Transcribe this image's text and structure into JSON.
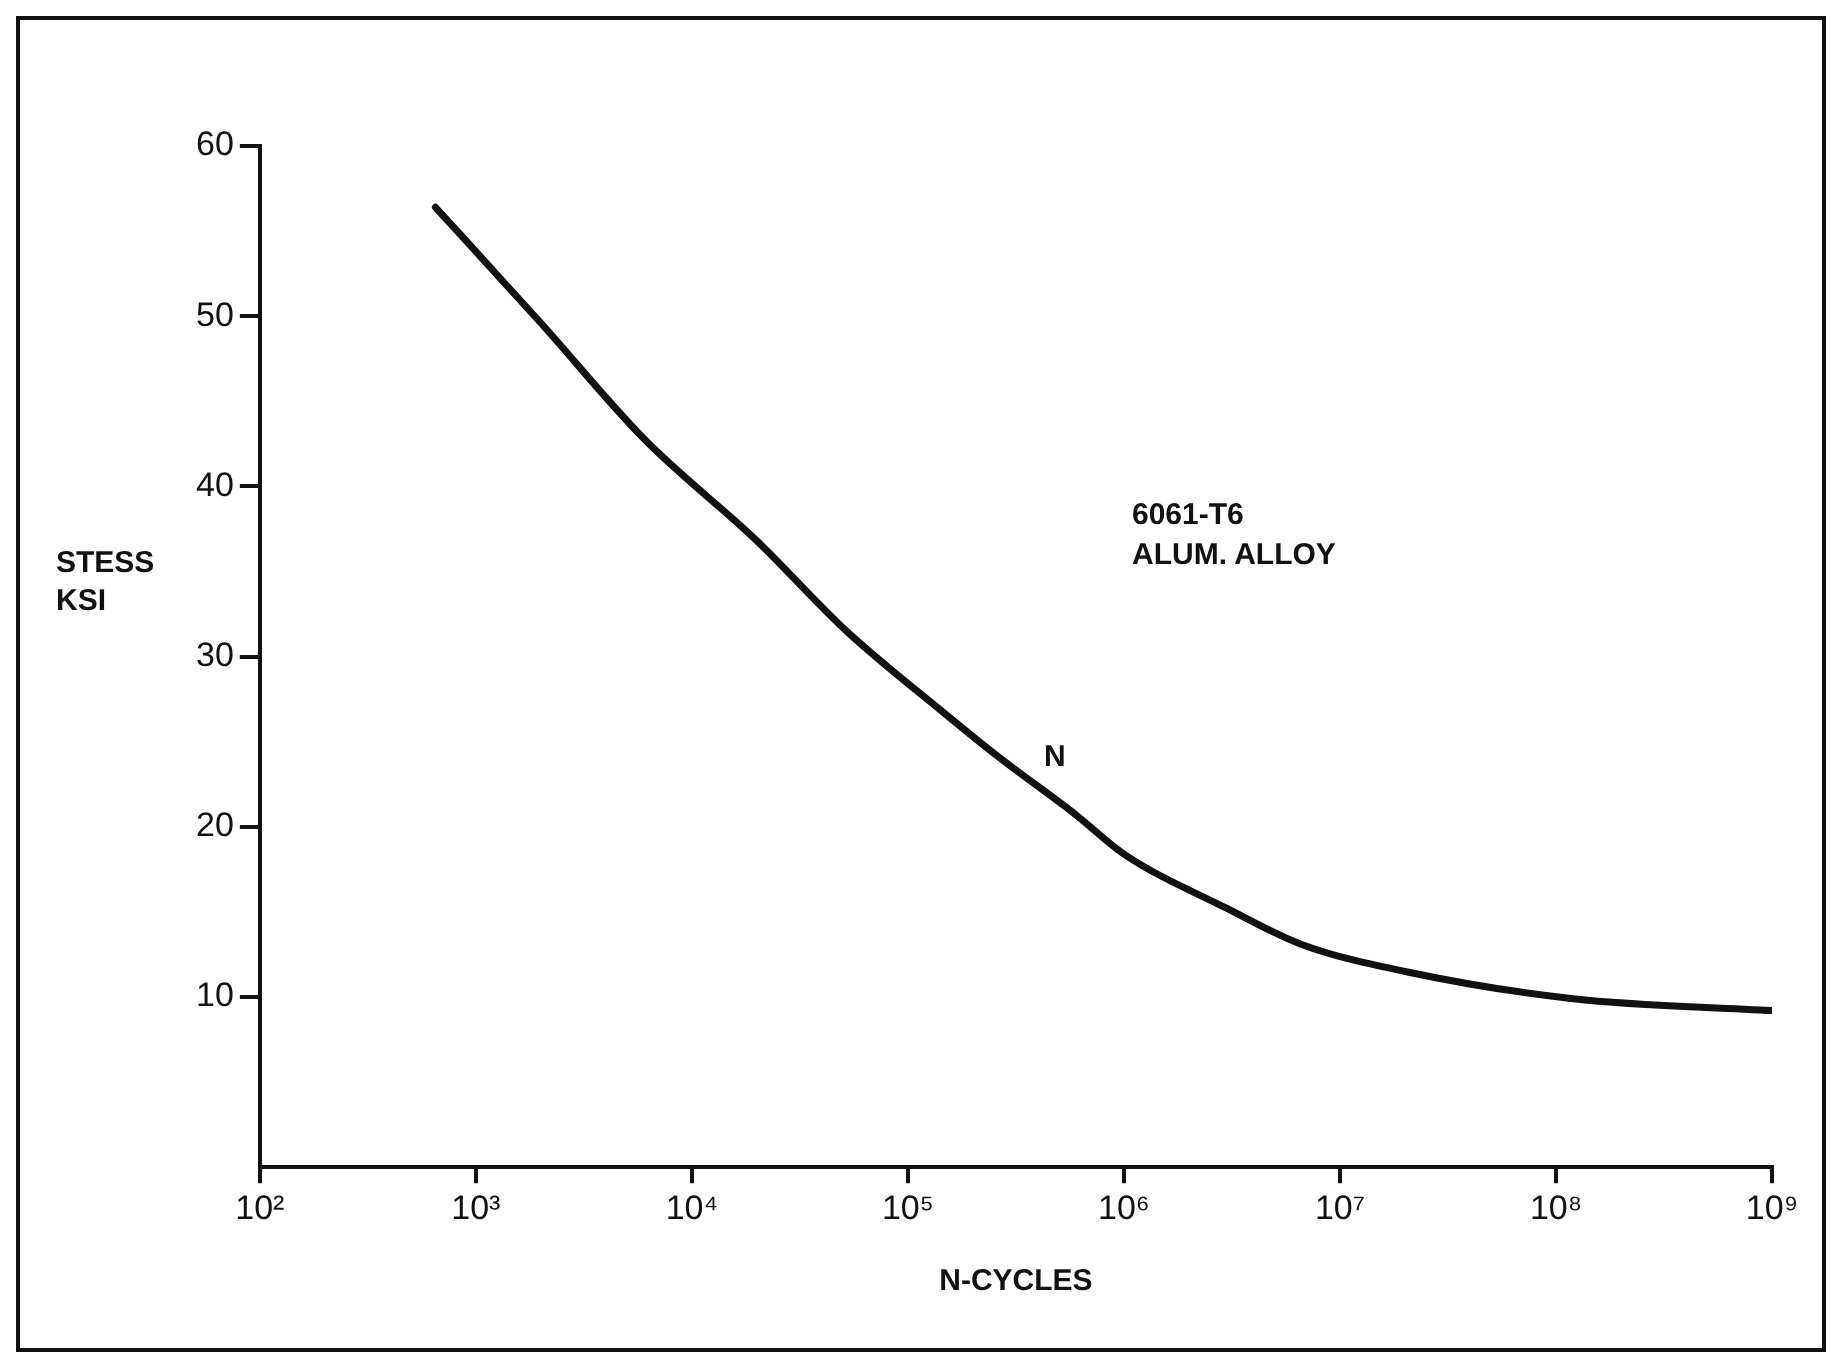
{
  "chart_data": {
    "type": "line",
    "xlabel": "N-CYCLES",
    "ylabel": "STESS KSI",
    "log": "x",
    "x": [
      650,
      2000,
      6000,
      20000,
      52000,
      150000,
      257000,
      600000,
      1000000,
      3000000,
      6600000,
      20000000,
      120000000,
      1000000000
    ],
    "series": [
      {
        "color": "#111111",
        "values": [
          56.4,
          49.6,
          42.8,
          36.8,
          31.5,
          26.6,
          24.2,
          20.7,
          18.4,
          15.2,
          13.1,
          11.5,
          9.9,
          9.2
        ]
      }
    ],
    "xlim": [
      100,
      1000000000
    ],
    "xticks": [
      {
        "value": 100,
        "label": "10²"
      },
      {
        "value": 1000,
        "label": "10³"
      },
      {
        "value": 10000,
        "label": "10⁴"
      },
      {
        "value": 100000,
        "label": "10⁵"
      },
      {
        "value": 1000000,
        "label": "10⁶"
      },
      {
        "value": 10000000,
        "label": "10⁷"
      },
      {
        "value": 100000000,
        "label": "10⁸"
      },
      {
        "value": 1000000000,
        "label": "10⁹"
      }
    ],
    "ylim": [
      0,
      60
    ],
    "yticks": [
      10,
      20,
      30,
      40,
      50,
      60
    ],
    "grid": false,
    "legend": false,
    "marker": "none",
    "line_style": "solid",
    "annotations": [
      "6061-T6",
      "ALUM. ALLOY",
      "N"
    ]
  }
}
